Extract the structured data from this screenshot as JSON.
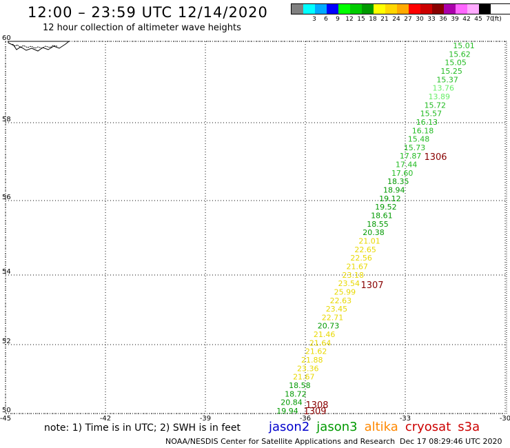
{
  "header": {
    "title": "12:00 – 23:59 UTC 12/14/2020",
    "subtitle": "12 hour collection of altimeter wave heights"
  },
  "legend": {
    "unit": "(ft)",
    "swatches": [
      {
        "color": "#808080",
        "label": ""
      },
      {
        "color": "#00ffff",
        "label": "3"
      },
      {
        "color": "#00aaff",
        "label": "6"
      },
      {
        "color": "#0000ff",
        "label": "9"
      },
      {
        "color": "#00ff00",
        "label": "12"
      },
      {
        "color": "#00cc00",
        "label": "15"
      },
      {
        "color": "#009900",
        "label": "18"
      },
      {
        "color": "#ffff00",
        "label": "21"
      },
      {
        "color": "#ffd700",
        "label": "24"
      },
      {
        "color": "#ffaa00",
        "label": "27"
      },
      {
        "color": "#ff0000",
        "label": "30"
      },
      {
        "color": "#cc0000",
        "label": "33"
      },
      {
        "color": "#880000",
        "label": "36"
      },
      {
        "color": "#aa00aa",
        "label": "39"
      },
      {
        "color": "#ff66ff",
        "label": "42"
      },
      {
        "color": "#ffaaff",
        "label": "45"
      },
      {
        "color": "#000000",
        "label": "70"
      }
    ]
  },
  "map": {
    "lon_ticks": [
      "-45",
      "-42",
      "-39",
      "-36",
      "-33",
      "-30"
    ],
    "lat_ticks": [
      "60",
      "58",
      "56",
      "54",
      "52",
      "50"
    ],
    "color_low": "#22bb22",
    "color_mid": "#009900",
    "color_light": "#66ee66",
    "color_yellow": "#e8d800",
    "color_pass": "#880000",
    "track": [
      {
        "v": "15.01",
        "c": "low"
      },
      {
        "v": "15.62",
        "c": "low"
      },
      {
        "v": "15.05",
        "c": "low"
      },
      {
        "v": "15.25",
        "c": "low"
      },
      {
        "v": "15.37",
        "c": "low"
      },
      {
        "v": "13.76",
        "c": "light"
      },
      {
        "v": "13.89",
        "c": "light"
      },
      {
        "v": "15.72",
        "c": "low"
      },
      {
        "v": "15.57",
        "c": "low"
      },
      {
        "v": "16.13",
        "c": "low"
      },
      {
        "v": "16.18",
        "c": "low"
      },
      {
        "v": "15.48",
        "c": "low"
      },
      {
        "v": "15.73",
        "c": "low"
      },
      {
        "v": "17.87",
        "c": "low"
      },
      {
        "v": "17.44",
        "c": "low"
      },
      {
        "v": "17.60",
        "c": "low"
      },
      {
        "v": "18.35",
        "c": "mid"
      },
      {
        "v": "18.94",
        "c": "mid"
      },
      {
        "v": "19.12",
        "c": "mid"
      },
      {
        "v": "19.52",
        "c": "mid"
      },
      {
        "v": "18.61",
        "c": "mid"
      },
      {
        "v": "18.55",
        "c": "mid"
      },
      {
        "v": "20.38",
        "c": "mid"
      },
      {
        "v": "21.01",
        "c": "yellow"
      },
      {
        "v": "22.65",
        "c": "yellow"
      },
      {
        "v": "22.56",
        "c": "yellow"
      },
      {
        "v": "21.67",
        "c": "yellow"
      },
      {
        "v": "23.18",
        "c": "yellow"
      },
      {
        "v": "23.54",
        "c": "yellow"
      },
      {
        "v": "25.99",
        "c": "yellow"
      },
      {
        "v": "22.63",
        "c": "yellow"
      },
      {
        "v": "23.45",
        "c": "yellow"
      },
      {
        "v": "22.71",
        "c": "yellow"
      },
      {
        "v": "20.73",
        "c": "mid"
      },
      {
        "v": "21.46",
        "c": "yellow"
      },
      {
        "v": "21.64",
        "c": "yellow"
      },
      {
        "v": "21.62",
        "c": "yellow"
      },
      {
        "v": "21.88",
        "c": "yellow"
      },
      {
        "v": "23.36",
        "c": "yellow"
      },
      {
        "v": "21.67",
        "c": "yellow"
      },
      {
        "v": "18.58",
        "c": "mid"
      },
      {
        "v": "18.72",
        "c": "mid"
      },
      {
        "v": "20.84",
        "c": "mid"
      },
      {
        "v": "19.94",
        "c": "mid"
      }
    ],
    "passes": [
      {
        "label": "1306"
      },
      {
        "label": "1307"
      },
      {
        "label": "1308"
      },
      {
        "label": "1309"
      }
    ]
  },
  "footer": {
    "note": "note: 1) Time is in UTC; 2) SWH is in feet",
    "satellites": [
      {
        "name": "jason2",
        "color": "#0000cc"
      },
      {
        "name": "jason3",
        "color": "#009900"
      },
      {
        "name": "altika",
        "color": "#ff8800"
      },
      {
        "name": "cryosat",
        "color": "#cc0000"
      },
      {
        "name": "s3a",
        "color": "#cc0000"
      }
    ],
    "credit": "NOAA/NESDIS Center for Satellite Applications and Research",
    "timestamp": "Dec 17 08:29:46 UTC 2020"
  }
}
